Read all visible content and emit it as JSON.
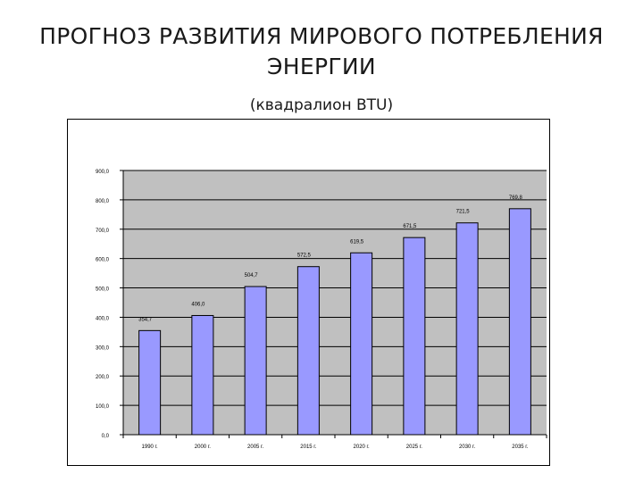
{
  "title_line1": "ПРОГНОЗ РАЗВИТИЯ МИРОВОГО ПОТРЕБЛЕНИЯ",
  "title_line2": "ЭНЕРГИИ",
  "subtitle": "(квадралион BTU)",
  "colors": {
    "plot_area": "#c0c0c0",
    "bar_fill": "#9999ff",
    "bar_stroke": "#000000",
    "gridline": "#000000"
  },
  "chart_data": {
    "type": "bar",
    "title": "",
    "xlabel": "",
    "ylabel": "",
    "ylim": [
      0,
      900
    ],
    "ytick_step": 100,
    "ytick_labels": [
      "0,0",
      "100,0",
      "200,0",
      "300,0",
      "400,0",
      "500,0",
      "600,0",
      "700,0",
      "800,0",
      "900,0"
    ],
    "categories": [
      "1990 г.",
      "2000 г.",
      "2005 г.",
      "2015 г.",
      "2020 г.",
      "2025 г.",
      "2030 г.",
      "2035 г."
    ],
    "values": [
      354.7,
      406.0,
      504.7,
      572.5,
      619.5,
      671.5,
      721.5,
      769.8
    ],
    "value_labels": [
      "354,7",
      "406,0",
      "504,7",
      "572,5",
      "619,5",
      "671,5",
      "721,5",
      "769,8"
    ],
    "grid": true,
    "legend": "none"
  }
}
